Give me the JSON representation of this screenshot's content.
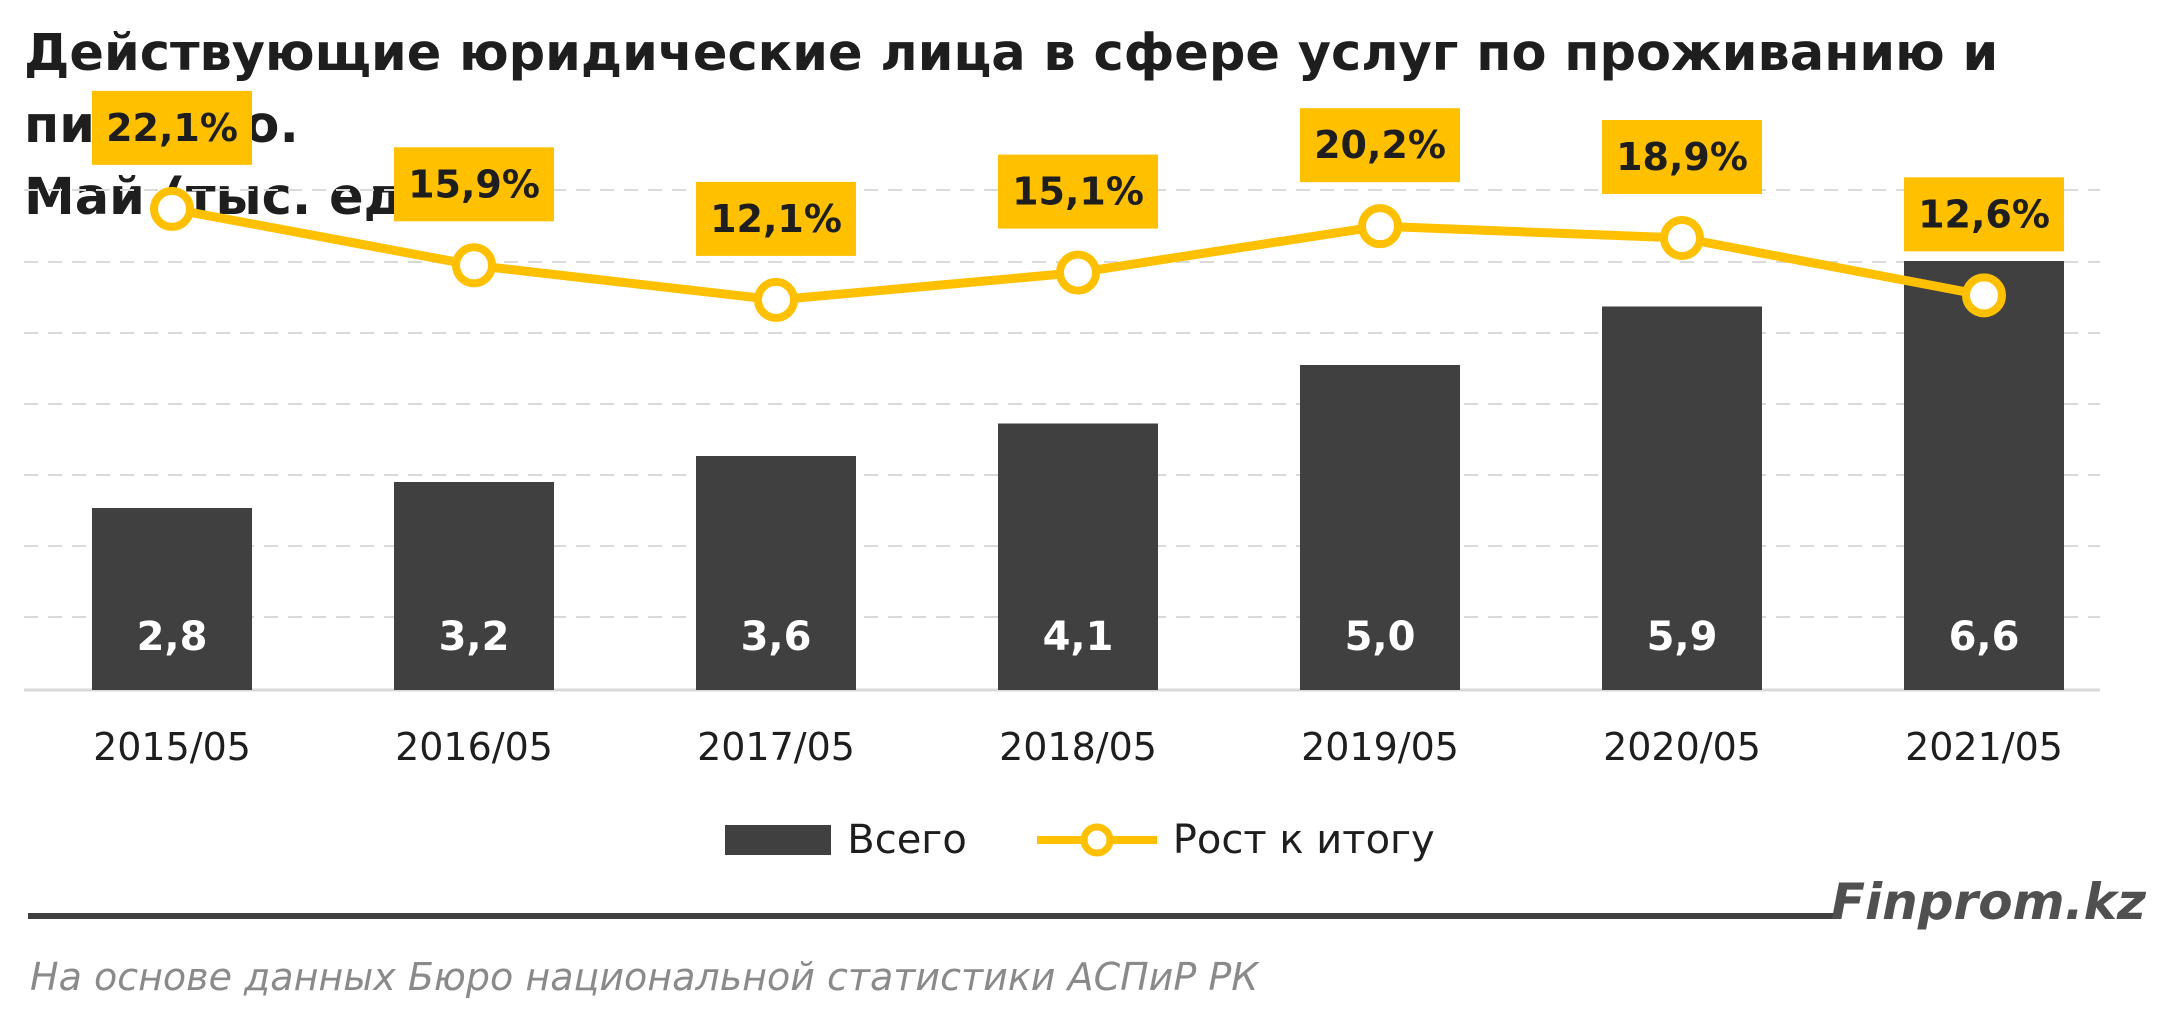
{
  "title": {
    "line1": "Действующие юридические лица в сфере услуг по проживанию и питанию.",
    "line2": "Май (тыс. ед.)"
  },
  "chart_data": {
    "type": "bar",
    "categories": [
      "2015/05",
      "2016/05",
      "2017/05",
      "2018/05",
      "2019/05",
      "2020/05",
      "2021/05"
    ],
    "series": [
      {
        "name": "Всего",
        "type": "bar",
        "values": [
          2.8,
          3.2,
          3.6,
          4.1,
          5.0,
          5.9,
          6.6
        ],
        "labels": [
          "2,8",
          "3,2",
          "3,6",
          "4,1",
          "5,0",
          "5,9",
          "6,6"
        ]
      },
      {
        "name": "Рост к итогу",
        "type": "line",
        "values": [
          22.1,
          15.9,
          12.1,
          15.1,
          20.2,
          18.9,
          12.6
        ],
        "labels": [
          "22,1%",
          "15,9%",
          "12,1%",
          "15,1%",
          "20,2%",
          "18,9%",
          "12,6%"
        ]
      }
    ],
    "grid": true,
    "legend_position": "bottom",
    "colors": {
      "bar": "#404040",
      "line": "#FFC000",
      "bar_label": "#ffffff",
      "grid": "#d9d9d9"
    }
  },
  "legend": {
    "bar_label": "Всего",
    "line_label": "Рост к итогу"
  },
  "brand": "Finprom.kz",
  "source": "На основе данных Бюро национальной статистики АСПиР РК"
}
